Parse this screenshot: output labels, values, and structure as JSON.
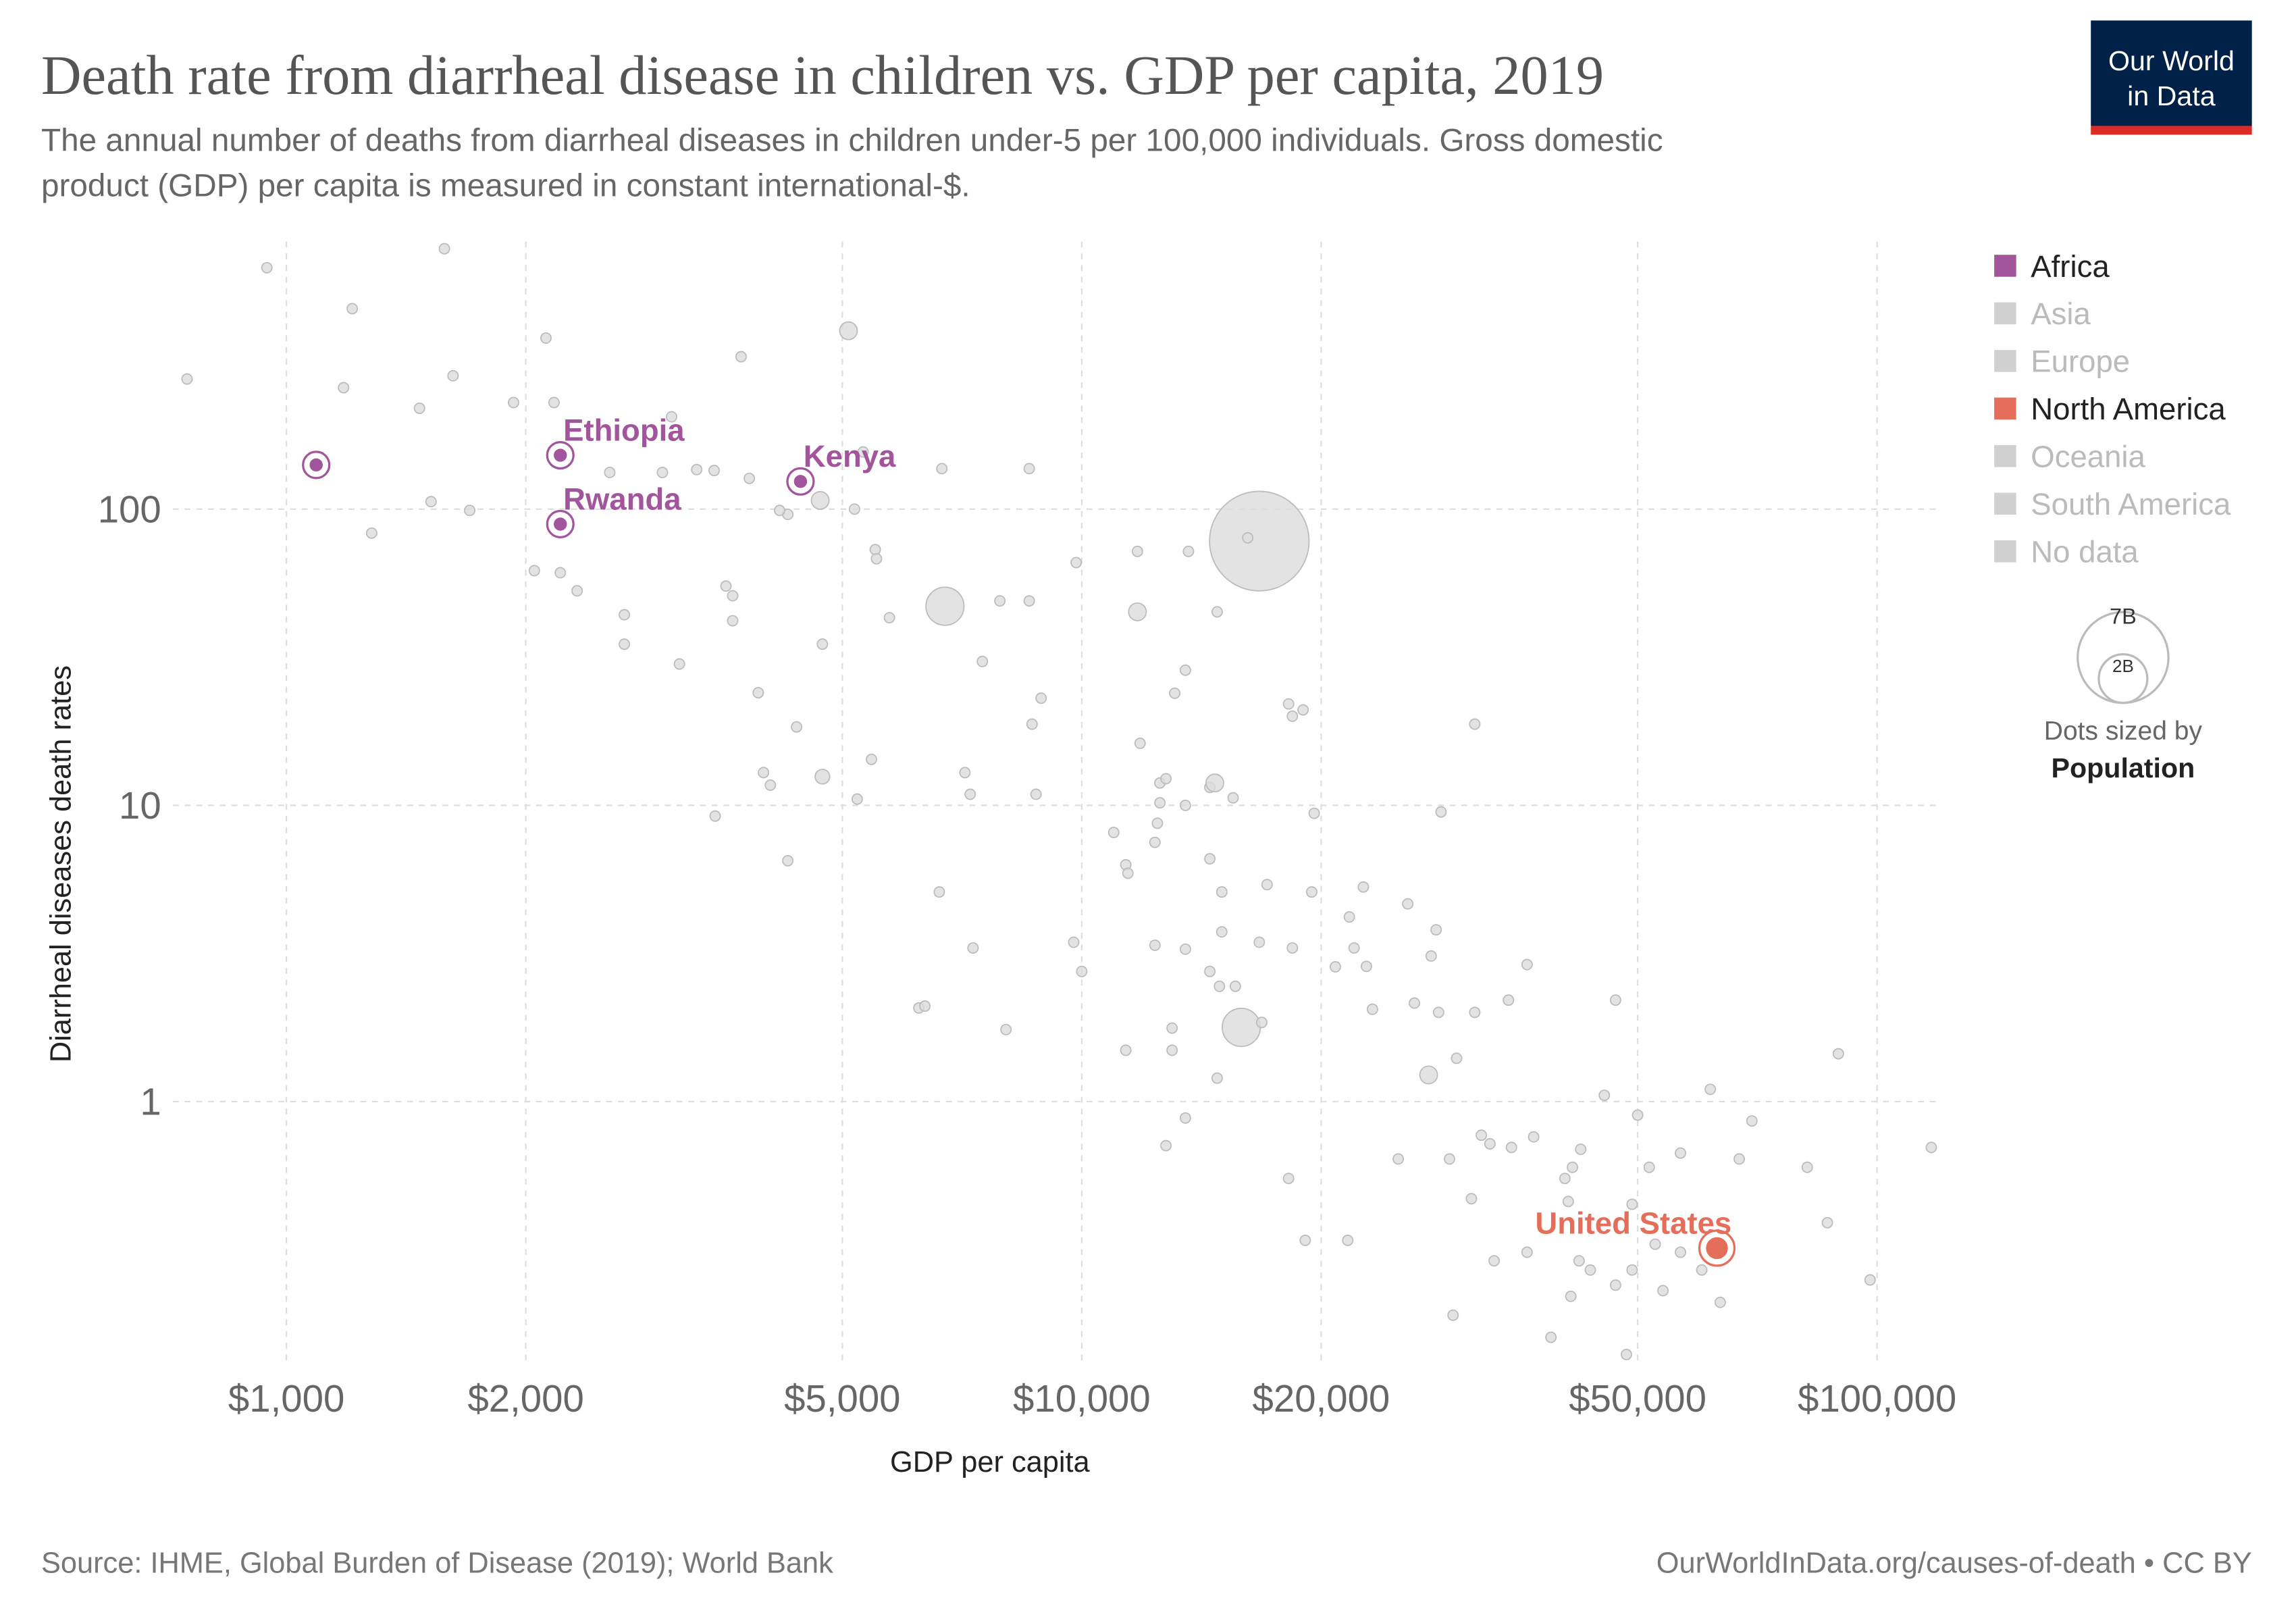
{
  "chart_data": {
    "type": "scatter",
    "title": "Death rate from diarrheal disease in children vs. GDP per capita, 2019",
    "subtitle": [
      "The annual number of deaths from diarrheal diseases in children under-5 per 100,000 individuals. Gross domestic",
      "product (GDP) per capita is measured in constant international-$."
    ],
    "logo": [
      "Our World",
      "in Data"
    ],
    "x_label": "GDP per capita",
    "y_label": "Diarrheal diseases death rates",
    "x_log": true,
    "y_log": true,
    "grid": true,
    "legend_position": "right",
    "xlim": [
      720,
      120000
    ],
    "ylim": [
      0.14,
      800
    ],
    "xticks": [
      {
        "value": 1000,
        "label": "$1,000"
      },
      {
        "value": 2000,
        "label": "$2,000"
      },
      {
        "value": 5000,
        "label": "$5,000"
      },
      {
        "value": 10000,
        "label": "$10,000"
      },
      {
        "value": 20000,
        "label": "$20,000"
      },
      {
        "value": 50000,
        "label": "$50,000"
      },
      {
        "value": 100000,
        "label": "$100,000"
      }
    ],
    "yticks": [
      1,
      10,
      100
    ],
    "series": [
      {
        "name": "Africa",
        "color": "#a2559c",
        "x": [
          1090,
          2210,
          2210,
          4430
        ],
        "y": [
          141,
          152,
          89,
          124
        ],
        "population": [
          30000000,
          30000000,
          30000000,
          30000000
        ],
        "labels": [
          null,
          "Ethiopia",
          "Rwanda",
          "Kenya"
        ]
      },
      {
        "name": "Asia",
        "color": "#d0d0d0"
      },
      {
        "name": "Europe",
        "color": "#d0d0d0"
      },
      {
        "name": "North America",
        "color": "#e56e5a",
        "x": [
          62900
        ],
        "y": [
          0.32
        ],
        "population": [
          77000000
        ],
        "labels": [
          "United States"
        ]
      },
      {
        "name": "Oceania",
        "color": "#d0d0d0"
      },
      {
        "name": "South America",
        "color": "#d0d0d0"
      },
      {
        "name": "No data",
        "color": "#d0d0d0"
      }
    ],
    "unhighlighted": {
      "color": "#dcdcdc",
      "x": [
        945,
        1580,
        750,
        1210,
        1180,
        1470,
        1620,
        1520,
        1700,
        1280,
        1930,
        2120,
        2170,
        2550,
        2050,
        2210,
        2320,
        2660,
        2660,
        3120,
        3050,
        2970,
        3280,
        3450,
        3730,
        3820,
        3570,
        3640,
        3640,
        3460,
        3920,
        3980,
        4060,
        4270,
        4170,
        4380,
        4720,
        4720,
        4270,
        5090,
        4690,
        5180,
        5310,
        5500,
        5520,
        5730,
        5440,
        5220,
        6670,
        6730,
        7130,
        7240,
        6620,
        7300,
        6240,
        6350,
        7500,
        7890,
        8590,
        8590,
        8660,
        8890,
        8760,
        8030,
        9840,
        9770,
        10000,
        10970,
        11360,
        11430,
        11750,
        11750,
        11840,
        11360,
        12360,
        12540,
        12760,
        12540,
        12450,
        12360,
        13090,
        13500,
        13620,
        13500,
        12990,
        12990,
        12760,
        13500,
        13500,
        14490,
        14700,
        15500,
        14490,
        15000,
        15000,
        14490,
        14900,
        15600,
        14800,
        15870,
        14800,
        16720,
        16170,
        16720,
        16840,
        17100,
        18200,
        18400,
        18980,
        18400,
        18200,
        19460,
        19600,
        19100,
        20840,
        21700,
        22000,
        22800,
        22600,
        23200,
        21600,
        25700,
        26200,
        25000,
        27300,
        27900,
        27500,
        28100,
        28300,
        29600,
        29000,
        29300,
        31200,
        31200,
        30900,
        31800,
        32600,
        33000,
        34400,
        34700,
        36300,
        37000,
        36300,
        38900,
        40500,
        41400,
        42400,
        40900,
        42200,
        43600,
        41200,
        45400,
        46900,
        46900,
        48400,
        49200,
        50000,
        51700,
        52600,
        53800,
        56600,
        56600,
        60200,
        61700,
        63500,
        67100,
        69600,
        81700,
        86600,
        89400,
        98000,
        117000,
        49200
      ],
      "y": [
        653,
        757,
        275,
        475,
        257,
        219,
        282,
        106,
        99,
        83,
        229,
        378,
        229,
        133,
        62,
        61,
        53,
        44,
        35,
        30,
        205,
        133,
        136,
        135,
        327,
        127,
        55,
        51,
        42,
        9.2,
        24,
        12.9,
        11.7,
        96,
        99,
        18.4,
        35,
        12.5,
        6.5,
        400,
        107,
        100,
        156,
        73,
        68,
        43,
        14.3,
        10.5,
        137,
        47,
        12.9,
        10.9,
        5.1,
        3.3,
        2.07,
        2.1,
        30.6,
        49,
        137,
        49,
        18.8,
        23,
        10.9,
        1.75,
        66,
        3.45,
        2.75,
        8.1,
        6.3,
        5.9,
        72,
        45,
        16.2,
        1.49,
        3.37,
        11.9,
        12.3,
        10.2,
        8.7,
        7.5,
        23.9,
        28.6,
        72,
        10,
        1.77,
        1.49,
        0.71,
        0.88,
        3.27,
        11.5,
        11.9,
        10.6,
        6.6,
        5.1,
        3.74,
        2.75,
        2.45,
        2.45,
        45,
        1.78,
        1.2,
        78,
        80,
        3.45,
        1.85,
        5.4,
        22,
        20,
        21,
        3.3,
        0.55,
        5.1,
        9.4,
        0.34,
        2.85,
        4.2,
        3.3,
        2.86,
        5.3,
        2.05,
        0.34,
        4.65,
        2.15,
        0.64,
        1.23,
        3.8,
        3.1,
        2.0,
        9.5,
        1.4,
        0.64,
        0.19,
        18.8,
        2.0,
        0.47,
        0.77,
        0.72,
        0.29,
        2.2,
        0.7,
        2.9,
        0.76,
        0.31,
        0.16,
        0.55,
        0.6,
        0.69,
        0.46,
        0.29,
        0.27,
        0.22,
        1.05,
        2.2,
        0.24,
        0.14,
        0.27,
        0.9,
        0.6,
        0.33,
        0.23,
        0.67,
        0.31,
        0.27,
        1.1,
        0.21,
        0.64,
        0.86,
        0.6,
        0.39,
        1.45,
        0.25,
        0.7,
        0.45
      ],
      "population": [
        10000000,
        10000000,
        10000000,
        10000000,
        10000000,
        10000000,
        10000000,
        10000000,
        10000000,
        10000000,
        10000000,
        10000000,
        10000000,
        10000000,
        10000000,
        10000000,
        10000000,
        10000000,
        10000000,
        10000000,
        10000000,
        10000000,
        10000000,
        10000000,
        10000000,
        10000000,
        10000000,
        10000000,
        10000000,
        10000000,
        10000000,
        10000000,
        10000000,
        10000000,
        10000000,
        10000000,
        10000000,
        30000000,
        10000000,
        44000000,
        44000000,
        10000000,
        10000000,
        10000000,
        10000000,
        10000000,
        10000000,
        10000000,
        10000000,
        205000000,
        10000000,
        10000000,
        10000000,
        10000000,
        10000000,
        10000000,
        10000000,
        10000000,
        10000000,
        10000000,
        10000000,
        10000000,
        10000000,
        10000000,
        10000000,
        10000000,
        10000000,
        10000000,
        10000000,
        10000000,
        10000000,
        44000000,
        10000000,
        10000000,
        10000000,
        10000000,
        10000000,
        10000000,
        10000000,
        10000000,
        10000000,
        10000000,
        10000000,
        10000000,
        10000000,
        10000000,
        10000000,
        10000000,
        10000000,
        10000000,
        44000000,
        10000000,
        10000000,
        10000000,
        10000000,
        10000000,
        10000000,
        10000000,
        10000000,
        205000000,
        10000000,
        1400000000,
        10000000,
        10000000,
        10000000,
        10000000,
        10000000,
        10000000,
        10000000,
        10000000,
        10000000,
        10000000,
        10000000,
        10000000,
        10000000,
        10000000,
        10000000,
        10000000,
        10000000,
        10000000,
        10000000,
        10000000,
        10000000,
        10000000,
        44000000,
        10000000,
        10000000,
        10000000,
        10000000,
        10000000,
        10000000,
        10000000,
        10000000,
        10000000,
        10000000,
        10000000,
        10000000,
        10000000,
        10000000,
        10000000,
        10000000,
        10000000,
        10000000,
        10000000,
        10000000,
        10000000,
        10000000,
        10000000,
        10000000,
        10000000,
        10000000,
        10000000,
        10000000,
        10000000,
        10000000,
        10000000,
        10000000,
        10000000,
        10000000,
        10000000,
        10000000,
        10000000,
        10000000,
        10000000,
        10000000,
        10000000,
        10000000,
        10000000,
        10000000,
        10000000,
        10000000,
        10000000,
        10000000
      ]
    },
    "size_legend": {
      "ticks": [
        {
          "value": 7000000000,
          "label": "7B"
        },
        {
          "value": 2000000000,
          "label": "2B"
        }
      ],
      "title": "Dots sized by",
      "variable": "Population"
    },
    "source": "Source: IHME, Global Burden of Disease (2019); World Bank",
    "credit": "OurWorldInData.org/causes-of-death • CC BY"
  }
}
